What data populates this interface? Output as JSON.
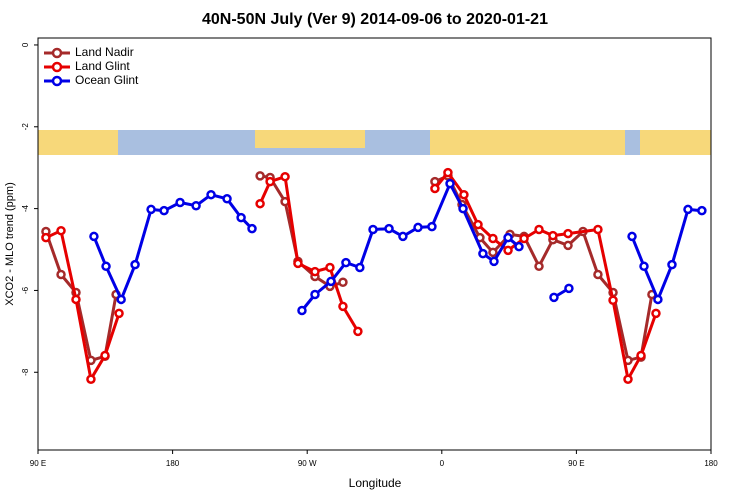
{
  "chart_data": {
    "type": "line",
    "title": "40N-50N July (Ver 9)   2014-09-06 to 2020-01-21",
    "xlabel": "Longitude",
    "ylabel": "XCO2 - MLO trend (ppm)",
    "xlim": [
      90,
      540
    ],
    "ylim": [
      -9.9,
      0.17
    ],
    "xticks": [
      {
        "value": 90,
        "label": "90 E"
      },
      180,
      {
        "value": 270,
        "label": "90 W"
      },
      {
        "value": 360,
        "label": "0"
      },
      {
        "value": 450,
        "label": "90 E"
      },
      {
        "value": 540,
        "label": "180"
      }
    ],
    "yticks": [
      0,
      -2,
      -4,
      -6,
      -8
    ],
    "legend": "top-left",
    "series": [
      {
        "name": "Land Nadir",
        "color": "#a52a2a",
        "x": [
          95.3,
          105.4,
          115.4,
          125.4,
          134.8,
          142.2,
          null,
          238.5,
          245.2,
          255.2,
          263.8,
          275.2,
          285.2,
          293.9,
          null,
          355.4,
          364.1,
          373.5,
          385.5,
          394.2,
          405.6,
          415.0,
          425.0,
          434.3,
          444.4,
          454.4,
          464.4,
          474.5,
          484.5,
          493.2,
          500.5
        ],
        "values": [
          -4.56,
          -5.61,
          -6.05,
          -7.71,
          -7.61,
          -6.1,
          null,
          -3.2,
          -3.24,
          -3.83,
          -5.29,
          -5.66,
          -5.9,
          -5.8,
          null,
          -3.34,
          -3.2,
          -3.9,
          -4.71,
          -5.07,
          -4.63,
          -4.68,
          -5.41,
          -4.76,
          -4.9,
          -4.56,
          -5.61,
          -6.05,
          -7.71,
          -7.63,
          -6.1
        ]
      },
      {
        "name": "Land Glint",
        "color": "#e60000",
        "x": [
          95.3,
          105.4,
          115.4,
          125.4,
          134.8,
          144.2,
          null,
          238.5,
          245.2,
          255.2,
          263.8,
          275.2,
          285.2,
          293.9,
          303.9,
          null,
          355.4,
          364.1,
          374.8,
          384.2,
          394.2,
          404.3,
          415.0,
          425.0,
          434.3,
          444.4,
          464.4,
          474.5,
          484.5,
          493.2,
          503.2
        ],
        "values": [
          -4.71,
          -4.54,
          -6.22,
          -8.17,
          -7.59,
          -6.56,
          null,
          -3.88,
          -3.34,
          -3.22,
          -5.34,
          -5.54,
          -5.44,
          -6.39,
          -7.0,
          null,
          -3.51,
          -3.12,
          -3.66,
          -4.39,
          -4.73,
          -5.02,
          -4.73,
          -4.51,
          -4.66,
          -4.61,
          -4.51,
          -6.24,
          -8.17,
          -7.59,
          -6.56
        ]
      },
      {
        "name": "Ocean Glint",
        "color": "#0000e6",
        "x": [
          127.4,
          135.5,
          145.6,
          154.9,
          165.6,
          174.3,
          185.0,
          195.7,
          205.7,
          216.4,
          225.8,
          233.1,
          null,
          266.5,
          275.2,
          285.9,
          295.9,
          305.2,
          314.0,
          324.7,
          334.0,
          344.1,
          353.4,
          365.5,
          374.2,
          387.5,
          394.9,
          404.3,
          411.6,
          null,
          435.0,
          445.0,
          null,
          487.2,
          495.2,
          504.5,
          513.9,
          524.6,
          533.9
        ],
        "values": [
          -4.68,
          -5.41,
          -6.22,
          -5.37,
          -4.02,
          -4.05,
          -3.85,
          -3.93,
          -3.66,
          -3.76,
          -4.22,
          -4.49,
          null,
          -6.49,
          -6.1,
          -5.78,
          -5.32,
          -5.44,
          -4.51,
          -4.49,
          -4.68,
          -4.46,
          -4.44,
          -3.39,
          -4.0,
          -5.1,
          -5.29,
          -4.71,
          -4.93,
          null,
          -6.17,
          -5.95,
          null,
          -4.68,
          -5.41,
          -6.22,
          -5.37,
          -4.02,
          -4.05
        ]
      }
    ]
  }
}
